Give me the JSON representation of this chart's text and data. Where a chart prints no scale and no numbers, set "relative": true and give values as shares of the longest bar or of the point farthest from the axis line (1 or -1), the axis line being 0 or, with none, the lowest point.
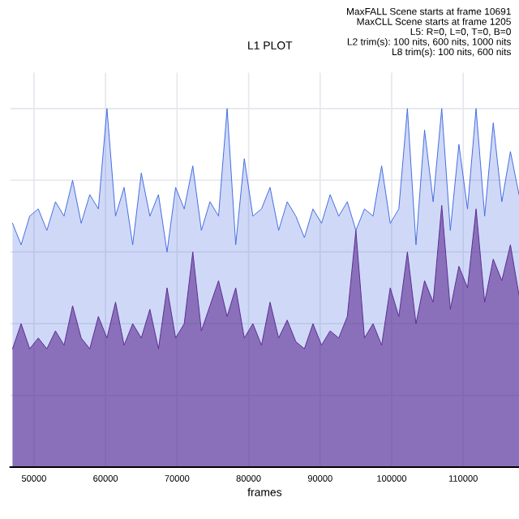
{
  "chart_data": {
    "type": "area",
    "title": "L1 PLOT",
    "xlabel": "frames",
    "relative": true,
    "annotations": [
      "MaxFALL Scene starts at frame 10691",
      "MaxCLL Scene starts at frame 1205",
      "L5: R=0, L=0, T=0, B=0",
      "L2 trim(s): 100 nits, 600 nits, 1000 nits",
      "L8 trim(s): 100 nits, 600 nits"
    ],
    "x": [
      47000,
      48200,
      49400,
      50600,
      51800,
      53000,
      54200,
      55400,
      56600,
      57800,
      59000,
      60200,
      61400,
      62600,
      63800,
      65000,
      66200,
      67400,
      68600,
      69800,
      71000,
      72200,
      73400,
      74600,
      75800,
      77000,
      78200,
      79400,
      80600,
      81800,
      83000,
      84200,
      85400,
      86600,
      87800,
      89000,
      90200,
      91400,
      92600,
      93800,
      95000,
      96200,
      97400,
      98600,
      99800,
      101000,
      102200,
      103400,
      104600,
      105800,
      107000,
      108200,
      109400,
      110600,
      111800,
      113000,
      114200,
      115400,
      116600,
      117800
    ],
    "xlim": [
      46700,
      117800
    ],
    "xticks": [
      50000,
      60000,
      70000,
      80000,
      90000,
      100000,
      110000
    ],
    "grid": true,
    "series": [
      {
        "color": "#4169e1",
        "values": [
          0.68,
          0.62,
          0.7,
          0.72,
          0.66,
          0.74,
          0.7,
          0.8,
          0.68,
          0.76,
          0.72,
          1.0,
          0.7,
          0.78,
          0.62,
          0.82,
          0.7,
          0.76,
          0.6,
          0.78,
          0.72,
          0.84,
          0.66,
          0.74,
          0.7,
          1.0,
          0.62,
          0.86,
          0.7,
          0.72,
          0.78,
          0.66,
          0.74,
          0.7,
          0.64,
          0.72,
          0.68,
          0.76,
          0.7,
          0.74,
          0.66,
          0.72,
          0.7,
          0.84,
          0.68,
          0.72,
          1.0,
          0.62,
          0.94,
          0.74,
          1.0,
          0.66,
          0.9,
          0.72,
          1.0,
          0.7,
          0.96,
          0.74,
          0.88,
          0.76
        ]
      },
      {
        "color": "#5b2a91",
        "values": [
          0.33,
          0.4,
          0.33,
          0.36,
          0.33,
          0.38,
          0.34,
          0.45,
          0.36,
          0.33,
          0.42,
          0.36,
          0.46,
          0.34,
          0.4,
          0.36,
          0.44,
          0.33,
          0.5,
          0.36,
          0.4,
          0.6,
          0.38,
          0.45,
          0.52,
          0.42,
          0.5,
          0.36,
          0.4,
          0.34,
          0.46,
          0.36,
          0.41,
          0.35,
          0.33,
          0.4,
          0.34,
          0.38,
          0.36,
          0.42,
          0.66,
          0.36,
          0.4,
          0.34,
          0.5,
          0.42,
          0.6,
          0.4,
          0.52,
          0.46,
          0.73,
          0.44,
          0.56,
          0.5,
          0.72,
          0.46,
          0.58,
          0.52,
          0.62,
          0.48
        ]
      }
    ]
  }
}
